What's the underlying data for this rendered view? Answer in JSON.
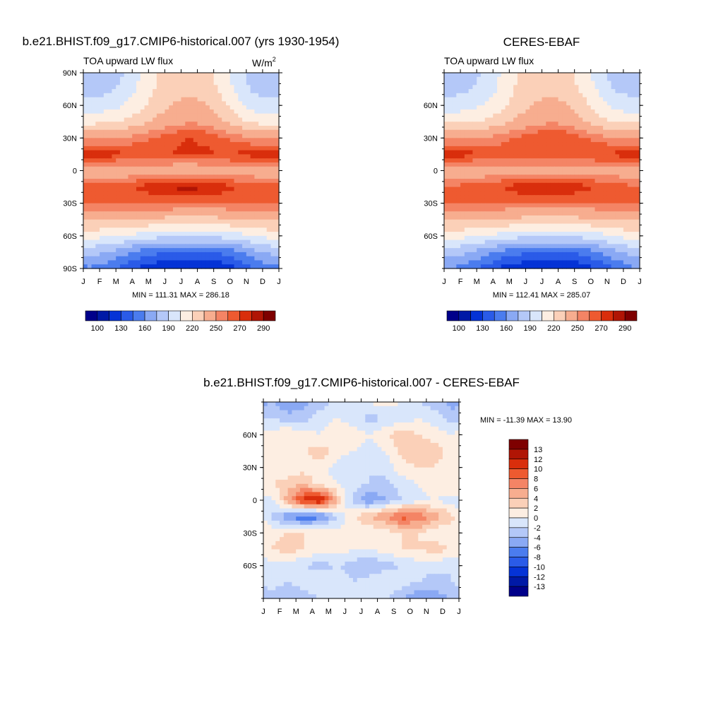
{
  "palette": {
    "model": [
      "#00008a",
      "#0019a6",
      "#0533d6",
      "#2a5be8",
      "#4b7cee",
      "#8aa9f4",
      "#b4c8f8",
      "#d9e6fb",
      "#fdeee2",
      "#fbd0b8",
      "#f7ad8f",
      "#f48465",
      "#ee5a30",
      "#d92e0c",
      "#b01505",
      "#7e0000"
    ],
    "diff": [
      "#00008a",
      "#0019a6",
      "#0533d6",
      "#2a5be8",
      "#4b7cee",
      "#8aa9f4",
      "#b4c8f8",
      "#d9e6fb",
      "#fdeee2",
      "#fbd0b8",
      "#f7ad8f",
      "#f48465",
      "#ee5a30",
      "#d92e0c",
      "#b01505",
      "#7e0000"
    ]
  },
  "panels": [
    {
      "title": "b.e21.BHIST.f09_g17.CMIP6-historical.007 (yrs 1930-1954)",
      "left_label": "TOA upward LW flux",
      "units_base": "W/m",
      "units_sup": "2",
      "stats": "MIN = 111.31 MAX = 286.18",
      "y_ticks": [
        "90N",
        "60N",
        "30N",
        "0",
        "30S",
        "60S",
        "90S"
      ],
      "x_ticks": [
        "J",
        "F",
        "M",
        "A",
        "M",
        "J",
        "J",
        "A",
        "S",
        "O",
        "N",
        "D",
        "J"
      ]
    },
    {
      "title": "CERES-EBAF",
      "left_label": "TOA upward LW flux",
      "stats": "MIN = 112.41 MAX = 285.07",
      "y_ticks": [
        "60N",
        "30N",
        "0",
        "30S",
        "60S"
      ],
      "x_ticks": [
        "J",
        "F",
        "M",
        "A",
        "M",
        "J",
        "J",
        "A",
        "S",
        "O",
        "N",
        "D",
        "J"
      ]
    },
    {
      "title": "b.e21.BHIST.f09_g17.CMIP6-historical.007 - CERES-EBAF",
      "stats": "MIN = -11.39 MAX =  13.90",
      "y_ticks": [
        "60N",
        "30N",
        "0",
        "30S",
        "60S"
      ],
      "x_ticks": [
        "J",
        "F",
        "M",
        "A",
        "M",
        "J",
        "J",
        "A",
        "S",
        "O",
        "N",
        "D",
        "J"
      ]
    }
  ],
  "colorbars": {
    "model_labels": [
      "100",
      "130",
      "160",
      "190",
      "220",
      "250",
      "270",
      "290"
    ],
    "obs_labels": [
      "100",
      "130",
      "160",
      "190",
      "220",
      "250",
      "270",
      "290"
    ],
    "diff_labels": [
      "13",
      "12",
      "10",
      "8",
      "6",
      "4",
      "2",
      "0",
      "-2",
      "-4",
      "-6",
      "-8",
      "-10",
      "-12",
      "-13"
    ]
  },
  "chart_data": [
    {
      "type": "heatmap",
      "title": "b.e21.BHIST.f09_g17.CMIP6-historical.007 (yrs 1930-1954)",
      "subtitle": "TOA upward LW flux",
      "units": "W/m2",
      "x": [
        "J",
        "F",
        "M",
        "A",
        "M",
        "J",
        "J",
        "A",
        "S",
        "O",
        "N",
        "D"
      ],
      "y": [
        90,
        75,
        60,
        45,
        30,
        15,
        0,
        -15,
        -30,
        -45,
        -60,
        -75,
        -90
      ],
      "ylim": [
        -90,
        90
      ],
      "values": [
        [
          175,
          180,
          190,
          205,
          220,
          228,
          230,
          228,
          212,
          195,
          180,
          175
        ],
        [
          182,
          186,
          195,
          208,
          222,
          230,
          232,
          230,
          215,
          200,
          186,
          182
        ],
        [
          195,
          198,
          205,
          215,
          228,
          236,
          238,
          236,
          225,
          210,
          198,
          195
        ],
        [
          215,
          218,
          222,
          228,
          238,
          245,
          248,
          246,
          238,
          225,
          216,
          214
        ],
        [
          248,
          250,
          252,
          256,
          262,
          268,
          270,
          268,
          262,
          255,
          250,
          248
        ],
        [
          278,
          276,
          272,
          268,
          268,
          270,
          272,
          272,
          270,
          272,
          275,
          278
        ],
        [
          238,
          236,
          238,
          242,
          240,
          238,
          236,
          238,
          240,
          242,
          240,
          238
        ],
        [
          264,
          266,
          268,
          272,
          278,
          282,
          284,
          282,
          276,
          270,
          266,
          264
        ],
        [
          262,
          262,
          262,
          262,
          262,
          262,
          260,
          260,
          260,
          262,
          262,
          262
        ],
        [
          238,
          238,
          236,
          234,
          232,
          230,
          230,
          230,
          232,
          234,
          236,
          238
        ],
        [
          210,
          208,
          204,
          200,
          196,
          194,
          194,
          194,
          196,
          200,
          206,
          210
        ],
        [
          180,
          175,
          165,
          155,
          148,
          145,
          145,
          145,
          148,
          158,
          170,
          178
        ],
        [
          158,
          150,
          138,
          125,
          118,
          115,
          113,
          114,
          118,
          130,
          145,
          155
        ]
      ]
    },
    {
      "type": "heatmap",
      "title": "CERES-EBAF",
      "subtitle": "TOA upward LW flux",
      "x": [
        "J",
        "F",
        "M",
        "A",
        "M",
        "J",
        "J",
        "A",
        "S",
        "O",
        "N",
        "D"
      ],
      "y": [
        90,
        75,
        60,
        45,
        30,
        15,
        0,
        -15,
        -30,
        -45,
        -60,
        -75,
        -90
      ],
      "ylim": [
        -90,
        90
      ],
      "values": [
        [
          178,
          182,
          192,
          206,
          220,
          226,
          228,
          226,
          212,
          196,
          182,
          178
        ],
        [
          184,
          188,
          196,
          208,
          222,
          230,
          232,
          230,
          216,
          202,
          188,
          184
        ],
        [
          196,
          200,
          206,
          216,
          228,
          236,
          238,
          236,
          226,
          212,
          200,
          196
        ],
        [
          216,
          218,
          222,
          228,
          238,
          245,
          248,
          246,
          238,
          226,
          218,
          216
        ],
        [
          248,
          250,
          252,
          256,
          262,
          268,
          270,
          268,
          262,
          256,
          250,
          248
        ],
        [
          276,
          274,
          270,
          266,
          266,
          268,
          270,
          270,
          268,
          270,
          273,
          276
        ],
        [
          240,
          238,
          240,
          244,
          242,
          240,
          238,
          240,
          242,
          244,
          242,
          240
        ],
        [
          262,
          264,
          266,
          270,
          276,
          280,
          282,
          280,
          274,
          268,
          264,
          262
        ],
        [
          260,
          260,
          260,
          260,
          260,
          260,
          258,
          258,
          258,
          260,
          260,
          260
        ],
        [
          238,
          238,
          236,
          234,
          232,
          230,
          230,
          230,
          232,
          234,
          236,
          238
        ],
        [
          212,
          208,
          204,
          200,
          196,
          194,
          194,
          194,
          196,
          200,
          206,
          212
        ],
        [
          182,
          176,
          166,
          156,
          150,
          146,
          146,
          146,
          150,
          160,
          172,
          180
        ],
        [
          160,
          152,
          140,
          127,
          120,
          116,
          114,
          115,
          120,
          132,
          147,
          157
        ]
      ]
    },
    {
      "type": "heatmap",
      "title": "b.e21.BHIST.f09_g17.CMIP6-historical.007 - CERES-EBAF",
      "x": [
        "J",
        "F",
        "M",
        "A",
        "M",
        "J",
        "J",
        "A",
        "S",
        "O",
        "N",
        "D"
      ],
      "y": [
        90,
        75,
        60,
        45,
        30,
        15,
        0,
        -15,
        -30,
        -45,
        -60,
        -75,
        -90
      ],
      "ylim": [
        -90,
        90
      ],
      "values": [
        [
          -4,
          -6,
          -5,
          -3,
          -1,
          0,
          0,
          1,
          0,
          -2,
          -3,
          -5
        ],
        [
          -2,
          -3,
          -3,
          -1,
          0,
          -1,
          -3,
          -2,
          -1,
          0,
          -1,
          -3
        ],
        [
          1,
          2,
          1,
          0,
          2,
          1,
          0,
          2,
          3,
          2,
          1,
          0
        ],
        [
          0,
          1,
          2,
          3,
          1,
          0,
          -1,
          0,
          3,
          4,
          3,
          1
        ],
        [
          1,
          0,
          1,
          1,
          -1,
          -2,
          -2,
          -1,
          1,
          2,
          2,
          1
        ],
        [
          2,
          3,
          4,
          1,
          0,
          -1,
          -2,
          -3,
          -1,
          0,
          1,
          2
        ],
        [
          -1,
          5,
          11,
          13,
          4,
          -3,
          -6,
          -4,
          -2,
          -1,
          0,
          -1
        ],
        [
          -2,
          -6,
          -8,
          -7,
          -2,
          2,
          4,
          6,
          9,
          8,
          5,
          3
        ],
        [
          1,
          2,
          2,
          2,
          1,
          0,
          0,
          1,
          2,
          2,
          1,
          0
        ],
        [
          2,
          3,
          2,
          1,
          1,
          0,
          0,
          1,
          2,
          2,
          3,
          2
        ],
        [
          -1,
          -1,
          -2,
          -3,
          -2,
          -3,
          -4,
          -3,
          -2,
          -1,
          -1,
          -2
        ],
        [
          -1,
          -2,
          -1,
          0,
          -1,
          -2,
          -1,
          0,
          -1,
          -2,
          -3,
          -2
        ],
        [
          -3,
          -4,
          -3,
          -2,
          -1,
          0,
          -1,
          -2,
          -4,
          -6,
          -5,
          -4
        ]
      ]
    }
  ]
}
